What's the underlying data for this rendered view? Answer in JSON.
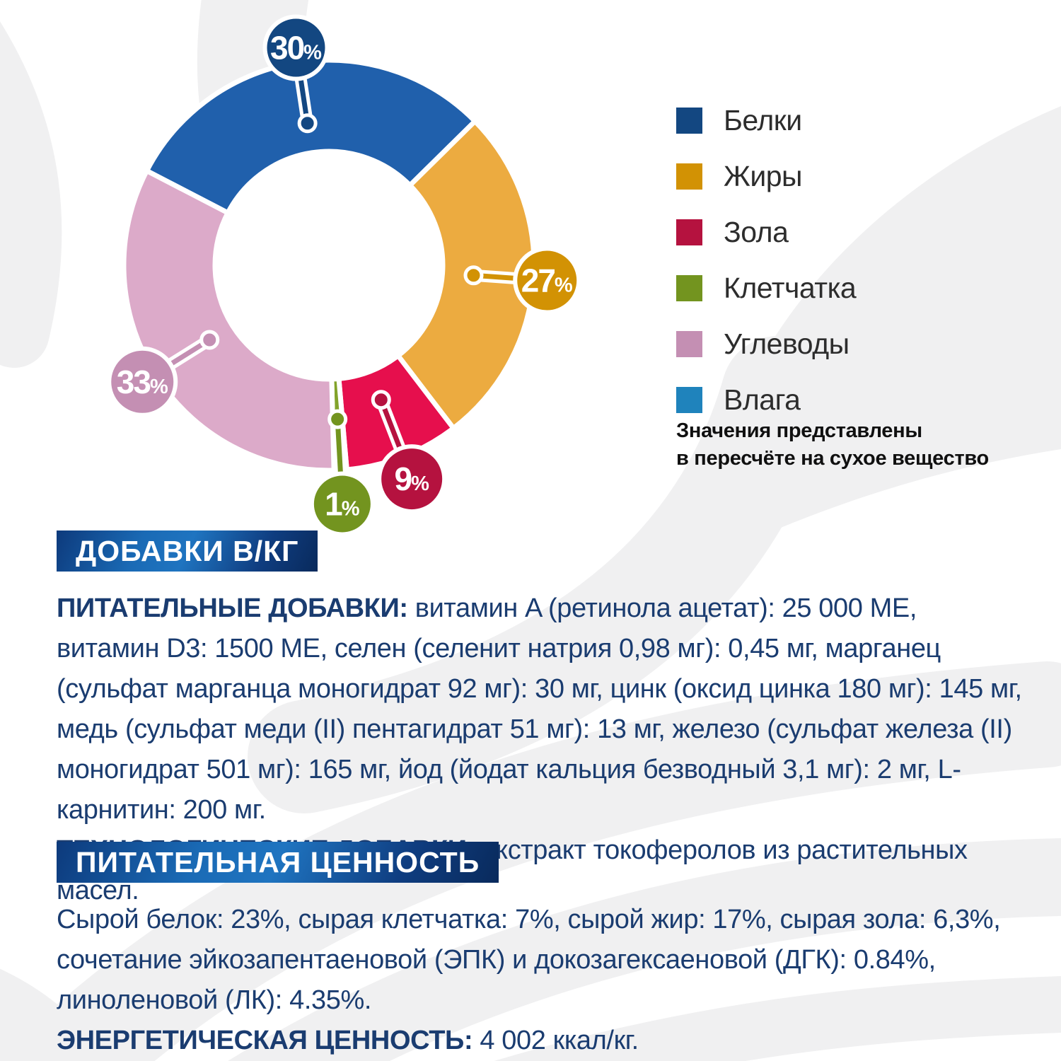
{
  "chart_data": {
    "type": "pie",
    "variant": "donut",
    "unit": "%",
    "start_angle_deg": -62.6,
    "legend_position": "right",
    "note": "Значения представлены в пересчёте на сухое вещество",
    "slices": [
      {
        "label": "Белки",
        "value": 30,
        "display": "30%",
        "color": "#2060ac",
        "callout_color": "#134781"
      },
      {
        "label": "Жиры",
        "value": 27,
        "display": "27%",
        "color": "#ecab40",
        "callout_color": "#d29204"
      },
      {
        "label": "Зола",
        "value": 9,
        "display": "9%",
        "color": "#e60f4d",
        "callout_color": "#b5123f"
      },
      {
        "label": "Клетчатка",
        "value": 1,
        "display": "1%",
        "color": "#82a32a",
        "callout_color": "#73941f"
      },
      {
        "label": "Углеводы",
        "value": 33,
        "display": "33%",
        "color": "#dcaac9",
        "callout_color": "#c48fb3"
      },
      {
        "label": "Влага",
        "value": 0,
        "display": "",
        "color": "#1f83bc",
        "callout_color": "#1f83bc"
      }
    ]
  },
  "legend_note": {
    "line1": "Значения представлены",
    "line2": "в пересчёте на сухое вещество"
  },
  "sections": {
    "additives": {
      "header": "ДОБАВКИ В/КГ",
      "nutritional_label": "ПИТАТЕЛЬНЫЕ ДОБАВКИ:",
      "nutritional_text": "витамин A (ретинола ацетат): 25 000 МЕ, витамин D3: 1500 МЕ, селен (селенит натрия 0,98 мг): 0,45 мг, марганец (сульфат марганца моногидрат 92 мг): 30 мг, цинк (оксид цинка 180 мг): 145 мг, медь (сульфат меди (II) пентагидрат 51 мг): 13 мг, железо (сульфат железа (II) моногидрат 501 мг): 165 мг, йод (йодат кальция безводный 3,1 мг): 2 мг, L-карнитин: 200 мг.",
      "technological_label": "ТЕХНОЛОГИЧЕСКИЕ ДОБАВКИ:",
      "technological_text": "экстракт токоферолов из растительных масел."
    },
    "nutrition": {
      "header": "ПИТАТЕЛЬНАЯ ЦЕННОСТЬ",
      "analysis_text": "Сырой белок: 23%, сырая клетчатка: 7%, сырой жир: 17%, сырая зола: 6,3%, сочетание эйкозапентаеновой (ЭПК) и докозагексаеновой (ДГК): 0.84%, линоленовой (ЛК): 4.35%.",
      "energy_label": "ЭНЕРГЕТИЧЕСКАЯ ЦЕННОСТЬ:",
      "energy_text": "4 002 ккал/кг."
    }
  }
}
